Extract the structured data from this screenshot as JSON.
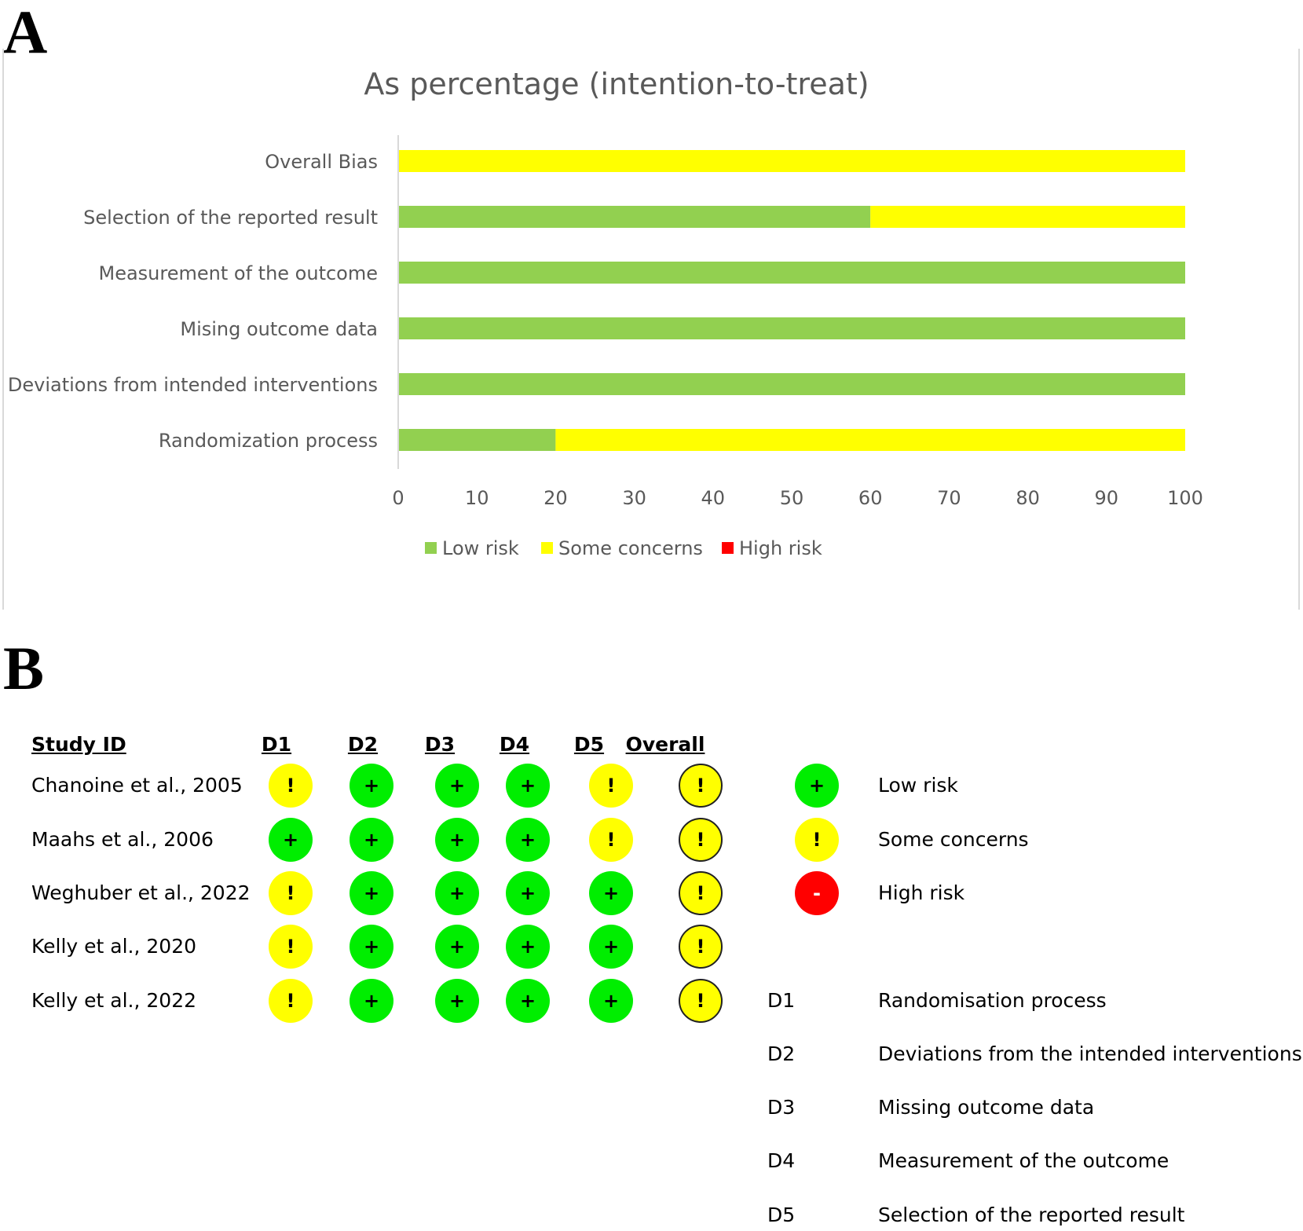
{
  "panel_a_label": "A",
  "panel_b_label": "B",
  "chart_data": {
    "type": "bar",
    "orientation": "horizontal",
    "stacked": true,
    "title": "As percentage (intention-to-treat)",
    "categories": [
      "Randomization process",
      "Deviations from intended interventions",
      "Mising outcome data",
      "Measurement of the outcome",
      "Selection of the reported result",
      "Overall Bias"
    ],
    "series": [
      {
        "name": "Low risk",
        "color": "#92d050",
        "values": [
          20,
          100,
          100,
          100,
          60,
          0
        ]
      },
      {
        "name": "Some concerns",
        "color": "#ffff00",
        "values": [
          80,
          0,
          0,
          0,
          40,
          100
        ]
      },
      {
        "name": "High risk",
        "color": "#ff0000",
        "values": [
          0,
          0,
          0,
          0,
          0,
          0
        ]
      }
    ],
    "xlim": [
      0,
      100
    ],
    "xticks": [
      "0",
      "10",
      "20",
      "30",
      "40",
      "50",
      "60",
      "70",
      "80",
      "90",
      "100"
    ],
    "legend_position": "bottom",
    "grid": false
  },
  "traffic_light": {
    "headers": [
      "Study ID",
      "D1",
      "D2",
      "D3",
      "D4",
      "D5",
      "Overall"
    ],
    "studies": [
      {
        "name": "Chanoine et al., 2005",
        "judgements": [
          "some",
          "low",
          "low",
          "low",
          "some",
          "some"
        ]
      },
      {
        "name": "Maahs et al., 2006",
        "judgements": [
          "low",
          "low",
          "low",
          "low",
          "some",
          "some"
        ]
      },
      {
        "name": "Weghuber et al., 2022",
        "judgements": [
          "some",
          "low",
          "low",
          "low",
          "low",
          "some"
        ]
      },
      {
        "name": "Kelly et al., 2020",
        "judgements": [
          "some",
          "low",
          "low",
          "low",
          "low",
          "some"
        ]
      },
      {
        "name": "Kelly et al., 2022",
        "judgements": [
          "some",
          "low",
          "low",
          "low",
          "low",
          "some"
        ]
      }
    ],
    "symbols": {
      "low": "+",
      "some": "!",
      "high": "-"
    },
    "colors": {
      "low": "#00ee00",
      "some": "#ffff00",
      "high": "#ff0000"
    },
    "legend": [
      {
        "key": "low",
        "symbol": "+",
        "label": "Low risk"
      },
      {
        "key": "some",
        "symbol": "!",
        "label": "Some concerns"
      },
      {
        "key": "high",
        "symbol": "-",
        "label": "High risk"
      }
    ],
    "domains": [
      {
        "code": "D1",
        "label": "Randomisation process"
      },
      {
        "code": "D2",
        "label": "Deviations from the intended interventions"
      },
      {
        "code": "D3",
        "label": "Missing outcome data"
      },
      {
        "code": "D4",
        "label": "Measurement of the outcome"
      },
      {
        "code": "D5",
        "label": "Selection of the reported result"
      }
    ]
  }
}
